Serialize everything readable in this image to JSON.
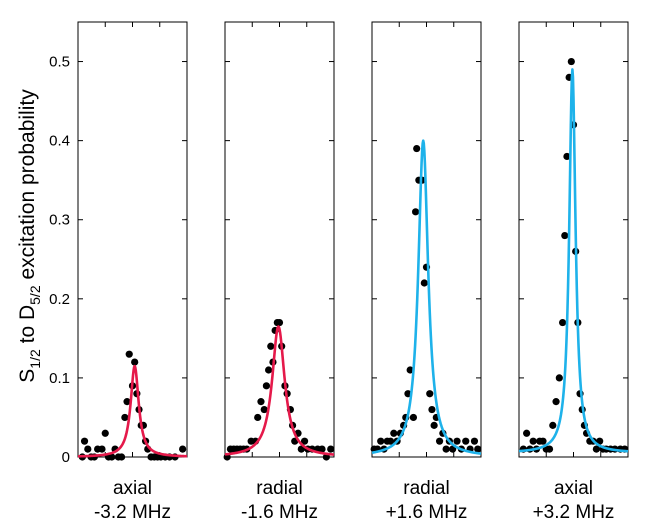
{
  "chart_data": {
    "type": "scatter",
    "ylabel": {
      "s_main": "S",
      "s_sub": "1/2",
      "middle": " to D",
      "d_sub": "5/2",
      "tail": " excitation probability"
    },
    "ylim": [
      0,
      0.55
    ],
    "yticks": [
      "0",
      "0.1",
      "0.2",
      "0.3",
      "0.4",
      "0.5"
    ],
    "grid": false,
    "colors": {
      "red_fit": "#e5194a",
      "blue_fit": "#1eb2ea",
      "points": "#000000"
    },
    "panels": [
      {
        "caption_line1": "axial",
        "caption_line2": "-3.2 MHz",
        "fit_color": "#e5194a",
        "fit": {
          "center": 0.52,
          "amplitude": 0.115,
          "hwhm": 0.045,
          "offset": 0.0
        },
        "points": [
          [
            0.04,
            0.0
          ],
          [
            0.06,
            0.02
          ],
          [
            0.09,
            0.01
          ],
          [
            0.12,
            0.0
          ],
          [
            0.15,
            0.0
          ],
          [
            0.18,
            0.01
          ],
          [
            0.22,
            0.01
          ],
          [
            0.25,
            0.03
          ],
          [
            0.28,
            0.0
          ],
          [
            0.31,
            0.0
          ],
          [
            0.34,
            0.01
          ],
          [
            0.37,
            0.0
          ],
          [
            0.4,
            0.0
          ],
          [
            0.43,
            0.05
          ],
          [
            0.45,
            0.07
          ],
          [
            0.47,
            0.13
          ],
          [
            0.5,
            0.09
          ],
          [
            0.52,
            0.12
          ],
          [
            0.54,
            0.08
          ],
          [
            0.56,
            0.06
          ],
          [
            0.58,
            0.04
          ],
          [
            0.6,
            0.04
          ],
          [
            0.62,
            0.02
          ],
          [
            0.64,
            0.01
          ],
          [
            0.67,
            0.0
          ],
          [
            0.7,
            0.0
          ],
          [
            0.73,
            0.0
          ],
          [
            0.76,
            0.0
          ],
          [
            0.8,
            0.0
          ],
          [
            0.84,
            0.0
          ],
          [
            0.89,
            0.0
          ],
          [
            0.96,
            0.01
          ]
        ]
      },
      {
        "caption_line1": "radial",
        "caption_line2": "-1.6 MHz",
        "fit_color": "#e5194a",
        "fit": {
          "center": 0.49,
          "amplitude": 0.165,
          "hwhm": 0.07,
          "offset": 0.0
        },
        "points": [
          [
            0.02,
            0.0
          ],
          [
            0.05,
            0.01
          ],
          [
            0.08,
            0.01
          ],
          [
            0.11,
            0.01
          ],
          [
            0.14,
            0.01
          ],
          [
            0.17,
            0.01
          ],
          [
            0.2,
            0.01
          ],
          [
            0.24,
            0.02
          ],
          [
            0.28,
            0.02
          ],
          [
            0.3,
            0.05
          ],
          [
            0.33,
            0.07
          ],
          [
            0.36,
            0.06
          ],
          [
            0.38,
            0.09
          ],
          [
            0.4,
            0.11
          ],
          [
            0.42,
            0.14
          ],
          [
            0.44,
            0.12
          ],
          [
            0.46,
            0.16
          ],
          [
            0.48,
            0.17
          ],
          [
            0.5,
            0.17
          ],
          [
            0.52,
            0.14
          ],
          [
            0.55,
            0.09
          ],
          [
            0.57,
            0.08
          ],
          [
            0.6,
            0.06
          ],
          [
            0.62,
            0.04
          ],
          [
            0.64,
            0.02
          ],
          [
            0.67,
            0.03
          ],
          [
            0.7,
            0.01
          ],
          [
            0.73,
            0.02
          ],
          [
            0.76,
            0.01
          ],
          [
            0.8,
            0.01
          ],
          [
            0.85,
            0.01
          ],
          [
            0.89,
            0.01
          ],
          [
            0.93,
            0.0
          ],
          [
            0.97,
            0.01
          ]
        ]
      },
      {
        "caption_line1": "radial",
        "caption_line2": "+1.6 MHz",
        "fit_color": "#1eb2ea",
        "fit": {
          "center": 0.47,
          "amplitude": 0.4,
          "hwhm": 0.055,
          "offset": 0.0
        },
        "points": [
          [
            0.02,
            0.01
          ],
          [
            0.05,
            0.01
          ],
          [
            0.08,
            0.02
          ],
          [
            0.11,
            0.01
          ],
          [
            0.14,
            0.02
          ],
          [
            0.17,
            0.02
          ],
          [
            0.2,
            0.03
          ],
          [
            0.23,
            0.02
          ],
          [
            0.26,
            0.03
          ],
          [
            0.29,
            0.04
          ],
          [
            0.31,
            0.05
          ],
          [
            0.33,
            0.08
          ],
          [
            0.35,
            0.11
          ],
          [
            0.38,
            0.05
          ],
          [
            0.4,
            0.31
          ],
          [
            0.41,
            0.39
          ],
          [
            0.43,
            0.35
          ],
          [
            0.46,
            0.35
          ],
          [
            0.48,
            0.22
          ],
          [
            0.5,
            0.24
          ],
          [
            0.53,
            0.08
          ],
          [
            0.55,
            0.06
          ],
          [
            0.57,
            0.04
          ],
          [
            0.59,
            0.05
          ],
          [
            0.62,
            0.02
          ],
          [
            0.65,
            0.03
          ],
          [
            0.68,
            0.01
          ],
          [
            0.71,
            0.02
          ],
          [
            0.74,
            0.01
          ],
          [
            0.78,
            0.02
          ],
          [
            0.82,
            0.01
          ],
          [
            0.86,
            0.02
          ],
          [
            0.9,
            0.01
          ],
          [
            0.94,
            0.02
          ],
          [
            0.97,
            0.01
          ]
        ]
      },
      {
        "caption_line1": "axial",
        "caption_line2": "+3.2 MHz",
        "fit_color": "#1eb2ea",
        "fit": {
          "center": 0.49,
          "amplitude": 0.485,
          "hwhm": 0.035,
          "offset": 0.005
        },
        "points": [
          [
            0.04,
            0.01
          ],
          [
            0.07,
            0.03
          ],
          [
            0.1,
            0.01
          ],
          [
            0.13,
            0.02
          ],
          [
            0.16,
            0.01
          ],
          [
            0.19,
            0.02
          ],
          [
            0.22,
            0.02
          ],
          [
            0.25,
            0.01
          ],
          [
            0.28,
            0.01
          ],
          [
            0.31,
            0.04
          ],
          [
            0.34,
            0.07
          ],
          [
            0.37,
            0.1
          ],
          [
            0.4,
            0.17
          ],
          [
            0.42,
            0.28
          ],
          [
            0.44,
            0.38
          ],
          [
            0.46,
            0.48
          ],
          [
            0.48,
            0.5
          ],
          [
            0.5,
            0.42
          ],
          [
            0.52,
            0.26
          ],
          [
            0.54,
            0.17
          ],
          [
            0.56,
            0.08
          ],
          [
            0.58,
            0.06
          ],
          [
            0.6,
            0.04
          ],
          [
            0.62,
            0.03
          ],
          [
            0.65,
            0.02
          ],
          [
            0.68,
            0.02
          ],
          [
            0.71,
            0.01
          ],
          [
            0.74,
            0.02
          ],
          [
            0.77,
            0.01
          ],
          [
            0.8,
            0.01
          ],
          [
            0.84,
            0.01
          ],
          [
            0.88,
            0.01
          ],
          [
            0.93,
            0.01
          ],
          [
            0.97,
            0.01
          ]
        ]
      }
    ]
  }
}
